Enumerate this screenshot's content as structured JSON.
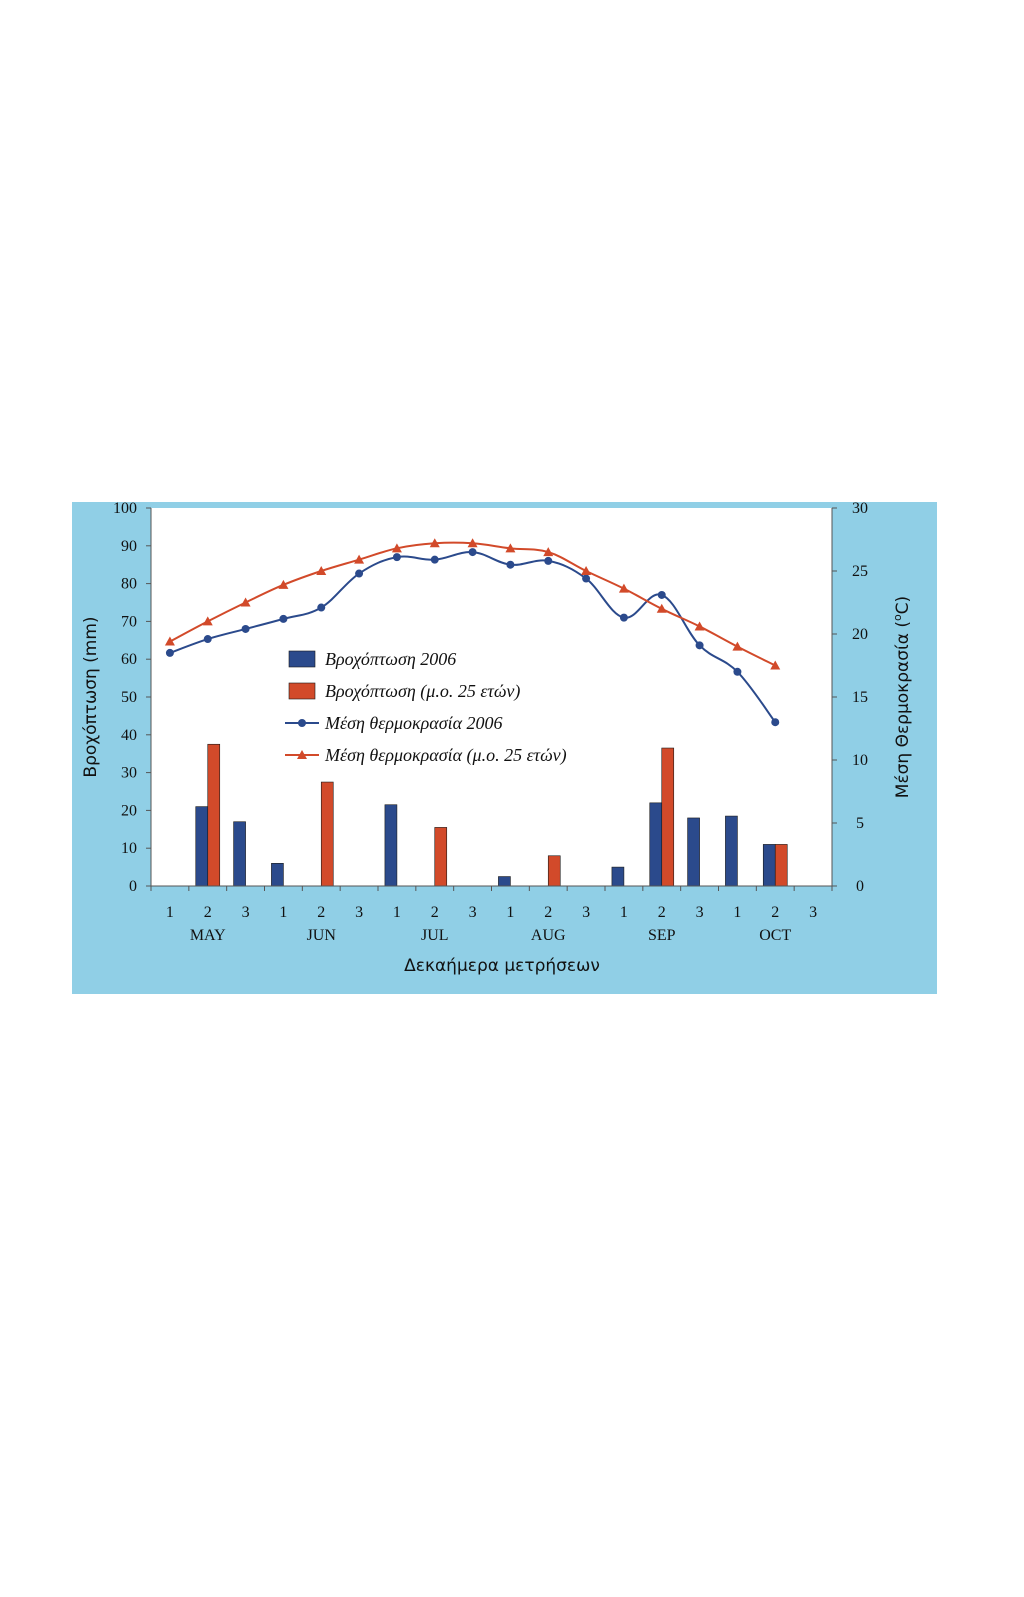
{
  "chart_data": {
    "type": "bar",
    "xlabel": "Δεκαήμερα μετρήσεων",
    "ylabel": "Βροχόπτωση (mm)",
    "y2label": "Μέση Θερμοκρασία (",
    "y2label_sup": "o",
    "y2label_end": "C)",
    "ylim": [
      0,
      100
    ],
    "y2lim": [
      0,
      30
    ],
    "yticks": [
      0,
      10,
      20,
      30,
      40,
      50,
      60,
      70,
      80,
      90,
      100
    ],
    "y2ticks": [
      0,
      5,
      10,
      15,
      20,
      25,
      30
    ],
    "categories": [
      "1",
      "2",
      "3",
      "1",
      "2",
      "3",
      "1",
      "2",
      "3",
      "1",
      "2",
      "3",
      "1",
      "2",
      "3",
      "1",
      "2",
      "3"
    ],
    "months": [
      "MAY",
      "JUN",
      "JUL",
      "AUG",
      "SEP",
      "OCT"
    ],
    "grid": false,
    "legend_position": "center",
    "series": [
      {
        "name": "Βροχόπτωση 2006",
        "kind": "bar",
        "axis": "left",
        "color": "#2b4a8c",
        "values": [
          0,
          21,
          17,
          6,
          0,
          0,
          21.5,
          0,
          0,
          2.5,
          0,
          0,
          5,
          22,
          18,
          18.5,
          11,
          0
        ]
      },
      {
        "name": "Βροχόπτωση (μ.ο. 25 ετών)",
        "kind": "bar",
        "axis": "left",
        "color": "#d24a2a",
        "values": [
          0,
          37.5,
          0,
          0,
          27.5,
          0,
          0,
          15.5,
          0,
          0,
          8,
          0,
          0,
          36.5,
          0,
          0,
          11,
          0
        ]
      },
      {
        "name": "Μέση θερμοκρασία 2006",
        "kind": "line",
        "axis": "right",
        "color": "#2b4a8c",
        "marker": "circle",
        "values": [
          18.5,
          19.6,
          20.4,
          21.2,
          22.1,
          24.8,
          26.1,
          25.9,
          26.5,
          25.5,
          25.8,
          24.4,
          21.3,
          23.1,
          19.1,
          17,
          13,
          null
        ]
      },
      {
        "name": "Μέση θερμοκρασία (μ.ο. 25 ετών)",
        "kind": "line",
        "axis": "right",
        "color": "#d24a2a",
        "marker": "triangle",
        "values": [
          19.4,
          21,
          22.5,
          23.9,
          25,
          25.9,
          26.8,
          27.2,
          27.2,
          26.8,
          26.5,
          25,
          23.6,
          22,
          20.6,
          19,
          17.5,
          null
        ]
      }
    ]
  }
}
